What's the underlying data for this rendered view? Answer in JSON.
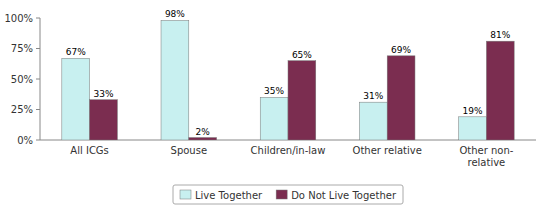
{
  "chart_data": {
    "type": "bar",
    "categories": [
      "All ICGs",
      "Spouse",
      "Children/in-law",
      "Other relative",
      "Other non-\nrelative"
    ],
    "series": [
      {
        "name": "Live Together",
        "color": "#c8f0f0",
        "values": [
          67,
          98,
          35,
          31,
          19
        ],
        "value_labels": [
          "67%",
          "98%",
          "35%",
          "31%",
          "19%"
        ]
      },
      {
        "name": "Do Not Live Together",
        "color": "#7b2d50",
        "values": [
          33,
          2,
          65,
          69,
          81
        ],
        "value_labels": [
          "33%",
          "2%",
          "65%",
          "69%",
          "81%"
        ]
      }
    ],
    "ylim": [
      0,
      100
    ],
    "yticks": [
      {
        "value": 0,
        "label": "0%"
      },
      {
        "value": 25,
        "label": "25%"
      },
      {
        "value": 50,
        "label": "50%"
      },
      {
        "value": 75,
        "label": "75%"
      },
      {
        "value": 100,
        "label": "100%"
      }
    ],
    "data_labels": true,
    "grid": false,
    "legend": "bottom"
  }
}
